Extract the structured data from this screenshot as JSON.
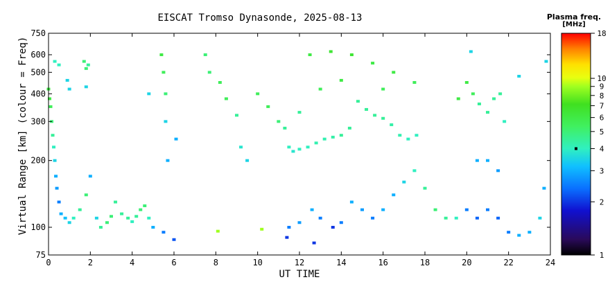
{
  "chart_data": {
    "type": "scatter",
    "title": "EISCAT Tromso Dynasonde, 2025-08-13",
    "xlabel": "UT TIME",
    "ylabel": "Virtual Range [km] (colour = Freq)",
    "xlim": [
      0,
      24
    ],
    "ylim": [
      75,
      750
    ],
    "y_scale": "log",
    "x_ticks": [
      0,
      2,
      4,
      6,
      8,
      10,
      12,
      14,
      16,
      18,
      20,
      22,
      24
    ],
    "y_ticks": [
      75,
      100,
      200,
      300,
      400,
      500,
      600,
      750
    ],
    "grid": false,
    "colorbar": {
      "title": "Plasma freq.",
      "unit": "[MHz]",
      "scale": "log",
      "range": [
        1,
        18
      ],
      "ticks": [
        1,
        2,
        3,
        4,
        5,
        6,
        7,
        8,
        9,
        10,
        18
      ],
      "marker_value": 4
    },
    "points": [
      [
        0.0,
        420,
        6.0
      ],
      [
        0.05,
        380,
        6.0
      ],
      [
        0.1,
        350,
        5.5
      ],
      [
        0.15,
        300,
        5.0
      ],
      [
        0.2,
        260,
        4.5
      ],
      [
        0.25,
        230,
        4.0
      ],
      [
        0.3,
        200,
        3.5
      ],
      [
        0.35,
        170,
        3.0
      ],
      [
        0.4,
        150,
        2.8
      ],
      [
        0.5,
        130,
        2.5
      ],
      [
        0.6,
        115,
        3.0
      ],
      [
        0.8,
        110,
        3.2
      ],
      [
        1.0,
        105,
        3.5
      ],
      [
        1.2,
        110,
        4.0
      ],
      [
        1.5,
        120,
        4.5
      ],
      [
        1.8,
        140,
        5.0
      ],
      [
        0.3,
        560,
        4.0
      ],
      [
        0.5,
        540,
        4.0
      ],
      [
        0.9,
        460,
        3.5
      ],
      [
        1.0,
        420,
        3.5
      ],
      [
        1.7,
        560,
        5.0
      ],
      [
        1.8,
        520,
        5.0
      ],
      [
        1.9,
        540,
        4.5
      ],
      [
        1.8,
        430,
        3.5
      ],
      [
        2.0,
        170,
        3.0
      ],
      [
        2.3,
        110,
        3.5
      ],
      [
        2.5,
        100,
        4.5
      ],
      [
        2.8,
        105,
        5.0
      ],
      [
        3.0,
        112,
        5.0
      ],
      [
        3.2,
        130,
        4.5
      ],
      [
        3.5,
        115,
        4.5
      ],
      [
        3.8,
        110,
        4.5
      ],
      [
        4.0,
        106,
        4.0
      ],
      [
        4.2,
        112,
        4.5
      ],
      [
        4.4,
        120,
        5.0
      ],
      [
        4.6,
        125,
        5.0
      ],
      [
        4.8,
        110,
        4.0
      ],
      [
        5.0,
        100,
        3.0
      ],
      [
        5.5,
        95,
        2.5
      ],
      [
        6.0,
        88,
        2.2
      ],
      [
        5.4,
        600,
        6.0
      ],
      [
        5.5,
        500,
        5.5
      ],
      [
        5.6,
        400,
        5.0
      ],
      [
        5.6,
        300,
        3.5
      ],
      [
        5.7,
        200,
        3.0
      ],
      [
        6.1,
        250,
        3.0
      ],
      [
        7.5,
        600,
        5.0
      ],
      [
        7.7,
        500,
        5.0
      ],
      [
        8.2,
        450,
        5.5
      ],
      [
        8.5,
        380,
        5.5
      ],
      [
        9.0,
        320,
        4.5
      ],
      [
        9.2,
        230,
        3.8
      ],
      [
        9.5,
        200,
        3.5
      ],
      [
        8.1,
        96,
        9.0
      ],
      [
        10.2,
        98,
        9.0
      ],
      [
        10.0,
        400,
        5.5
      ],
      [
        10.5,
        350,
        5.5
      ],
      [
        11.0,
        300,
        5.0
      ],
      [
        11.3,
        280,
        4.5
      ],
      [
        11.5,
        230,
        4.0
      ],
      [
        11.7,
        220,
        3.8
      ],
      [
        12.0,
        225,
        4.0
      ],
      [
        12.4,
        230,
        4.0
      ],
      [
        12.8,
        240,
        4.2
      ],
      [
        13.2,
        250,
        4.2
      ],
      [
        13.6,
        255,
        4.3
      ],
      [
        14.0,
        260,
        4.5
      ],
      [
        14.4,
        280,
        4.5
      ],
      [
        14.8,
        370,
        4.5
      ],
      [
        15.2,
        340,
        4.5
      ],
      [
        15.6,
        320,
        4.5
      ],
      [
        16.0,
        310,
        4.5
      ],
      [
        16.4,
        290,
        4.3
      ],
      [
        16.8,
        260,
        4.2
      ],
      [
        17.2,
        250,
        4.0
      ],
      [
        17.6,
        260,
        4.0
      ],
      [
        12.5,
        600,
        6.0
      ],
      [
        13.5,
        620,
        6.5
      ],
      [
        14.5,
        600,
        6.5
      ],
      [
        15.5,
        550,
        6.0
      ],
      [
        16.5,
        500,
        6.0
      ],
      [
        17.5,
        450,
        5.5
      ],
      [
        12.0,
        330,
        4.5
      ],
      [
        13.0,
        420,
        5.5
      ],
      [
        14.0,
        460,
        6.0
      ],
      [
        16.0,
        420,
        5.5
      ],
      [
        11.4,
        90,
        2.0
      ],
      [
        11.5,
        100,
        2.5
      ],
      [
        12.0,
        105,
        2.8
      ],
      [
        12.6,
        120,
        3.0
      ],
      [
        13.0,
        110,
        2.5
      ],
      [
        13.6,
        100,
        2.0
      ],
      [
        14.0,
        105,
        2.5
      ],
      [
        14.5,
        130,
        3.0
      ],
      [
        15.0,
        120,
        2.8
      ],
      [
        15.5,
        110,
        2.5
      ],
      [
        16.0,
        120,
        3.0
      ],
      [
        16.5,
        140,
        3.0
      ],
      [
        17.0,
        160,
        3.5
      ],
      [
        17.5,
        180,
        4.0
      ],
      [
        18.0,
        150,
        4.5
      ],
      [
        18.5,
        120,
        5.0
      ],
      [
        19.0,
        110,
        4.5
      ],
      [
        19.5,
        110,
        4.0
      ],
      [
        12.7,
        85,
        2.0
      ],
      [
        19.6,
        380,
        6.0
      ],
      [
        20.0,
        450,
        6.0
      ],
      [
        20.3,
        400,
        5.5
      ],
      [
        20.6,
        360,
        4.5
      ],
      [
        21.0,
        330,
        4.5
      ],
      [
        21.3,
        380,
        4.5
      ],
      [
        21.6,
        400,
        4.5
      ],
      [
        21.8,
        300,
        4.0
      ],
      [
        20.5,
        200,
        3.0
      ],
      [
        21.0,
        200,
        3.0
      ],
      [
        21.5,
        180,
        2.8
      ],
      [
        20.0,
        120,
        2.5
      ],
      [
        20.5,
        110,
        2.3
      ],
      [
        21.0,
        120,
        2.5
      ],
      [
        21.5,
        110,
        2.3
      ],
      [
        22.0,
        95,
        2.5
      ],
      [
        22.5,
        92,
        3.0
      ],
      [
        23.0,
        95,
        3.0
      ],
      [
        23.5,
        110,
        3.5
      ],
      [
        23.7,
        150,
        3.0
      ],
      [
        23.8,
        560,
        3.5
      ],
      [
        22.5,
        480,
        3.5
      ],
      [
        20.2,
        620,
        3.5
      ],
      [
        4.8,
        400,
        3.5
      ]
    ]
  }
}
